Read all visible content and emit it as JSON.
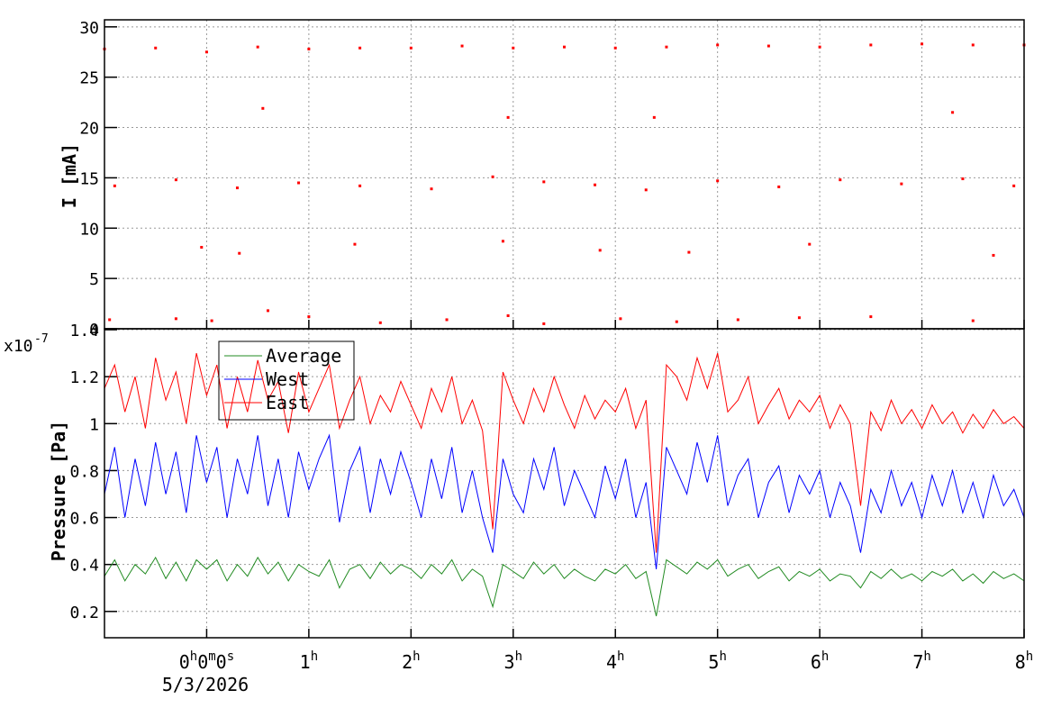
{
  "chart_data": [
    {
      "type": "scatter",
      "ylabel": "I [mA]",
      "color": "#ff0000",
      "xlim": [
        -1,
        8
      ],
      "ylim": [
        0,
        30.7
      ],
      "yticks": [
        0,
        5,
        10,
        15,
        20,
        25,
        30
      ],
      "grid": true,
      "x": [
        -1.0,
        -0.5,
        0.0,
        0.5,
        1.0,
        1.5,
        2.0,
        2.5,
        3.0,
        3.5,
        4.0,
        4.5,
        5.0,
        5.5,
        6.0,
        6.5,
        7.0,
        7.5,
        8.0,
        -0.9,
        -0.3,
        0.3,
        0.9,
        1.5,
        2.2,
        2.8,
        3.3,
        3.8,
        4.3,
        5.0,
        5.6,
        6.2,
        6.8,
        7.9,
        -0.95,
        -0.3,
        0.05,
        0.6,
        1.0,
        1.7,
        2.35,
        2.95,
        3.3,
        4.05,
        4.6,
        5.2,
        5.8,
        6.5,
        7.5,
        0.55,
        2.95,
        4.38,
        7.3,
        2.9,
        -0.05,
        1.45,
        3.85,
        5.9,
        7.7,
        0.32,
        4.72,
        7.4
      ],
      "values": [
        27.8,
        27.9,
        27.5,
        28.0,
        27.8,
        27.9,
        27.9,
        28.1,
        27.9,
        28.0,
        27.9,
        28.0,
        28.2,
        28.1,
        28.0,
        28.2,
        28.3,
        28.2,
        28.2,
        14.2,
        14.8,
        14.0,
        14.5,
        14.2,
        13.9,
        15.1,
        14.6,
        14.3,
        13.8,
        14.7,
        14.1,
        14.8,
        14.4,
        14.2,
        0.9,
        1.0,
        0.8,
        1.8,
        1.2,
        0.6,
        0.9,
        1.3,
        0.5,
        1.0,
        0.7,
        0.9,
        1.1,
        1.2,
        0.8,
        21.9,
        21.0,
        21.0,
        21.5,
        8.7,
        8.1,
        8.4,
        7.8,
        8.4,
        7.3,
        7.5,
        7.6,
        14.9
      ]
    },
    {
      "type": "line",
      "ylabel": "Pressure [Pa]",
      "multiplier_base": "x10",
      "multiplier_exponent": "-7",
      "date_label": "5/3/2026",
      "legend": "top-left",
      "xlim": [
        -1,
        8
      ],
      "ylim": [
        0.088,
        1.404
      ],
      "yticks": [
        0.2,
        0.4,
        0.6,
        0.8,
        1,
        1.2,
        1.4
      ],
      "xticks": [
        {
          "value": 0,
          "label": "0h0m0s"
        },
        {
          "value": 1,
          "label": "1h"
        },
        {
          "value": 2,
          "label": "2h"
        },
        {
          "value": 3,
          "label": "3h"
        },
        {
          "value": 4,
          "label": "4h"
        },
        {
          "value": 5,
          "label": "5h"
        },
        {
          "value": 6,
          "label": "6h"
        },
        {
          "value": 7,
          "label": "7h"
        },
        {
          "value": 8,
          "label": "8h"
        }
      ],
      "grid": true,
      "x": [
        -1.0,
        -0.9,
        -0.8,
        -0.7,
        -0.6,
        -0.5,
        -0.4,
        -0.3,
        -0.2,
        -0.1,
        0.0,
        0.1,
        0.2,
        0.3,
        0.4,
        0.5,
        0.6,
        0.7,
        0.8,
        0.9,
        1.0,
        1.1,
        1.2,
        1.3,
        1.4,
        1.5,
        1.6,
        1.7,
        1.8,
        1.9,
        2.0,
        2.1,
        2.2,
        2.3,
        2.4,
        2.5,
        2.6,
        2.7,
        2.8,
        2.9,
        3.0,
        3.1,
        3.2,
        3.3,
        3.4,
        3.5,
        3.6,
        3.7,
        3.8,
        3.9,
        4.0,
        4.1,
        4.2,
        4.3,
        4.4,
        4.5,
        4.6,
        4.7,
        4.8,
        4.9,
        5.0,
        5.1,
        5.2,
        5.3,
        5.4,
        5.5,
        5.6,
        5.7,
        5.8,
        5.9,
        6.0,
        6.1,
        6.2,
        6.3,
        6.4,
        6.5,
        6.6,
        6.7,
        6.8,
        6.9,
        7.0,
        7.1,
        7.2,
        7.3,
        7.4,
        7.5,
        7.6,
        7.7,
        7.8,
        7.9,
        8.0
      ],
      "series": [
        {
          "name": "Average",
          "color": "#228b22",
          "values": [
            0.35,
            0.42,
            0.33,
            0.4,
            0.36,
            0.43,
            0.34,
            0.41,
            0.33,
            0.42,
            0.38,
            0.42,
            0.33,
            0.4,
            0.35,
            0.43,
            0.36,
            0.41,
            0.33,
            0.4,
            0.37,
            0.35,
            0.42,
            0.3,
            0.38,
            0.4,
            0.34,
            0.41,
            0.36,
            0.4,
            0.38,
            0.34,
            0.4,
            0.36,
            0.42,
            0.33,
            0.38,
            0.35,
            0.22,
            0.4,
            0.37,
            0.34,
            0.41,
            0.36,
            0.4,
            0.34,
            0.38,
            0.35,
            0.33,
            0.38,
            0.36,
            0.4,
            0.34,
            0.37,
            0.18,
            0.42,
            0.39,
            0.36,
            0.41,
            0.38,
            0.42,
            0.35,
            0.38,
            0.4,
            0.34,
            0.37,
            0.39,
            0.33,
            0.37,
            0.35,
            0.38,
            0.33,
            0.36,
            0.35,
            0.3,
            0.37,
            0.34,
            0.38,
            0.34,
            0.36,
            0.33,
            0.37,
            0.35,
            0.38,
            0.33,
            0.36,
            0.32,
            0.37,
            0.34,
            0.36,
            0.33
          ]
        },
        {
          "name": "West",
          "color": "#0000ff",
          "values": [
            0.7,
            0.9,
            0.6,
            0.85,
            0.65,
            0.92,
            0.7,
            0.88,
            0.62,
            0.95,
            0.75,
            0.9,
            0.6,
            0.85,
            0.7,
            0.95,
            0.65,
            0.85,
            0.6,
            0.88,
            0.72,
            0.85,
            0.95,
            0.58,
            0.8,
            0.9,
            0.62,
            0.85,
            0.7,
            0.88,
            0.75,
            0.6,
            0.85,
            0.68,
            0.9,
            0.62,
            0.8,
            0.6,
            0.45,
            0.85,
            0.7,
            0.62,
            0.85,
            0.72,
            0.9,
            0.65,
            0.8,
            0.7,
            0.6,
            0.82,
            0.68,
            0.85,
            0.6,
            0.75,
            0.38,
            0.9,
            0.8,
            0.7,
            0.92,
            0.75,
            0.95,
            0.65,
            0.78,
            0.85,
            0.6,
            0.75,
            0.82,
            0.62,
            0.78,
            0.7,
            0.8,
            0.6,
            0.75,
            0.65,
            0.45,
            0.72,
            0.62,
            0.8,
            0.65,
            0.75,
            0.6,
            0.78,
            0.65,
            0.8,
            0.62,
            0.75,
            0.6,
            0.78,
            0.65,
            0.72,
            0.6
          ]
        },
        {
          "name": "East",
          "color": "#ff0000",
          "values": [
            1.15,
            1.25,
            1.05,
            1.2,
            0.98,
            1.28,
            1.1,
            1.22,
            1.0,
            1.3,
            1.12,
            1.25,
            0.98,
            1.2,
            1.05,
            1.27,
            1.1,
            1.18,
            0.96,
            1.22,
            1.05,
            1.15,
            1.25,
            0.98,
            1.1,
            1.2,
            1.0,
            1.12,
            1.05,
            1.18,
            1.08,
            0.98,
            1.15,
            1.05,
            1.2,
            1.0,
            1.1,
            0.97,
            0.55,
            1.22,
            1.1,
            1.0,
            1.15,
            1.05,
            1.2,
            1.08,
            0.98,
            1.12,
            1.02,
            1.1,
            1.05,
            1.15,
            0.98,
            1.1,
            0.45,
            1.25,
            1.2,
            1.1,
            1.28,
            1.15,
            1.3,
            1.05,
            1.1,
            1.2,
            1.0,
            1.08,
            1.15,
            1.02,
            1.1,
            1.05,
            1.12,
            0.98,
            1.08,
            1.0,
            0.65,
            1.05,
            0.97,
            1.1,
            1.0,
            1.06,
            0.98,
            1.08,
            1.0,
            1.05,
            0.96,
            1.04,
            0.98,
            1.06,
            1.0,
            1.03,
            0.98
          ]
        }
      ]
    }
  ]
}
